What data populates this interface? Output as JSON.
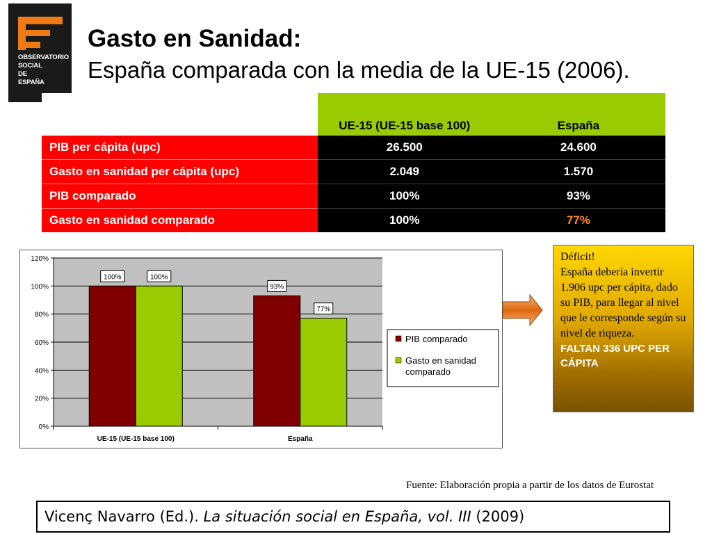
{
  "logo": {
    "lines": [
      "OBSERVATORIO",
      "SOCIAL",
      "DE",
      "ESPAÑA"
    ],
    "color": "#f07a14"
  },
  "title": {
    "line1": "Gasto en Sanidad:",
    "line2": "España comparada con la media de la UE-15 (2006)."
  },
  "table": {
    "headers": [
      "UE-15 (UE-15 base 100)",
      "España"
    ],
    "rows": [
      {
        "label": "PIB per cápita (upc)",
        "ue15": "26.500",
        "espana": "24.600"
      },
      {
        "label": "Gasto en sanidad per cápita (upc)",
        "ue15": "2.049",
        "espana": "1.570"
      },
      {
        "label": "PIB comparado",
        "ue15": "100%",
        "espana": "93%"
      },
      {
        "label": "Gasto en sanidad comparado",
        "ue15": "100%",
        "espana": "77%"
      }
    ]
  },
  "chart_data": {
    "type": "bar",
    "categories": [
      "UE-15 (UE-15 base 100)",
      "España"
    ],
    "series": [
      {
        "name": "PIB comparado",
        "color": "#800000",
        "values": [
          100,
          93
        ],
        "labels": [
          "100%",
          "93%"
        ]
      },
      {
        "name": "Gasto en sanidad comparado",
        "color": "#99cc00",
        "values": [
          100,
          77
        ],
        "labels": [
          "100%",
          "77%"
        ]
      }
    ],
    "ylim": [
      0,
      120
    ],
    "yticks": [
      "0%",
      "20%",
      "40%",
      "60%",
      "80%",
      "100%",
      "120%"
    ],
    "ytick_values": [
      0,
      20,
      40,
      60,
      80,
      100,
      120
    ],
    "grid": true,
    "legend": "right",
    "plot_bg": "#c0c0c0"
  },
  "deficit": {
    "line1": "Déficit!",
    "text": "España debería invertir 1.906 upc per cápita, dado su PIB, para llegar al nivel que le corresponde según su nivel de riqueza.",
    "cap": "FALTAN 336 UPC PER CÁPITA"
  },
  "source": "Fuente: Elaboración propia a partir de los datos de Eurostat",
  "citation": {
    "author": "Vicenç Navarro (Ed.). ",
    "work": "La situación social en España, vol. III",
    "year": " (2009)"
  }
}
